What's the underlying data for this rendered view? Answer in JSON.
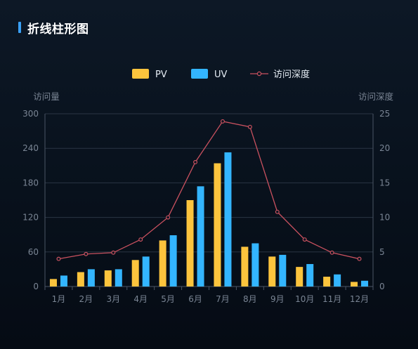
{
  "panel": {
    "title": "折线柱形图"
  },
  "chart_data": {
    "type": "bar",
    "categories": [
      "1月",
      "2月",
      "3月",
      "4月",
      "5月",
      "6月",
      "7月",
      "8月",
      "9月",
      "10月",
      "11月",
      "12月"
    ],
    "series": [
      {
        "name": "PV",
        "kind": "bar",
        "axis": "left",
        "color": "#fcc43d",
        "values": [
          13,
          25,
          28,
          46,
          80,
          150,
          214,
          69,
          52,
          34,
          17,
          8
        ]
      },
      {
        "name": "UV",
        "kind": "bar",
        "axis": "left",
        "color": "#33b5ff",
        "values": [
          19,
          30,
          30,
          52,
          89,
          174,
          233,
          75,
          55,
          39,
          21,
          10
        ]
      },
      {
        "name": "访问深度",
        "kind": "line",
        "axis": "right",
        "color": "#c9515f",
        "values": [
          4.0,
          4.7,
          4.9,
          6.8,
          10.0,
          18.0,
          23.9,
          23.1,
          10.8,
          6.8,
          4.9,
          4.0
        ]
      }
    ],
    "y_left": {
      "label": "访问量",
      "range": [
        0,
        300
      ],
      "ticks": [
        0,
        60,
        120,
        180,
        240,
        300
      ]
    },
    "y_right": {
      "label": "访问深度",
      "range": [
        0,
        25
      ],
      "ticks": [
        0,
        5,
        10,
        15,
        20,
        25
      ]
    },
    "legend_position": "top-center",
    "grid": true
  }
}
